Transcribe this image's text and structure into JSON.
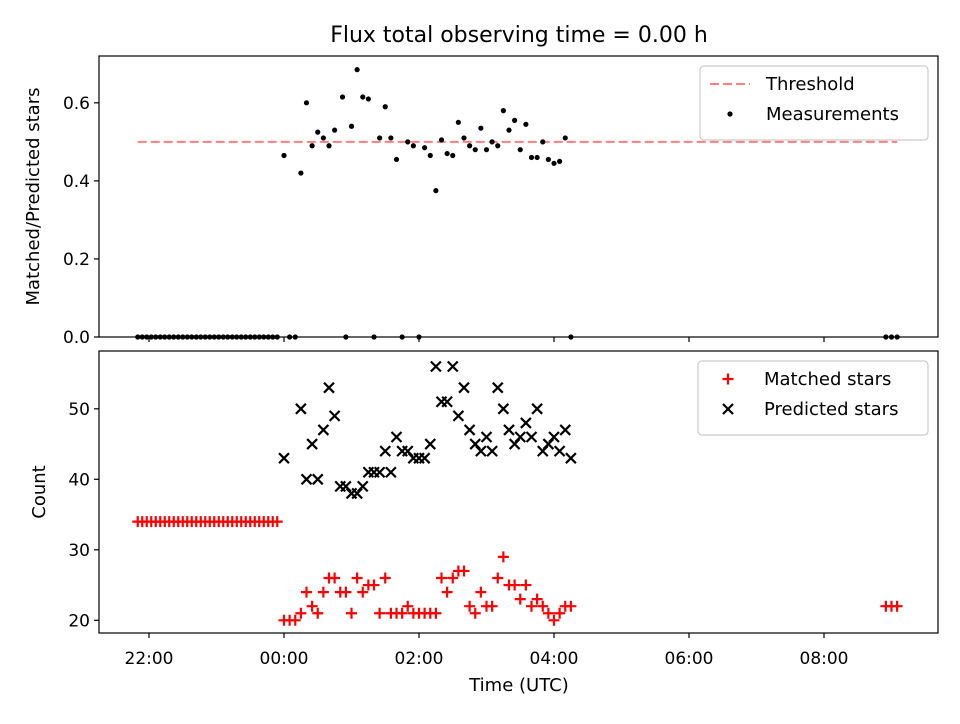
{
  "chart_data": {
    "type": "scatter",
    "title": "Flux total observing time = 0.00 h",
    "xlabel": "Time (UTC)",
    "x_ticks": [
      "22:00",
      "00:00",
      "02:00",
      "04:00",
      "06:00",
      "08:00"
    ],
    "panels": [
      {
        "id": "ratio",
        "ylabel": "Matched/Predicted stars",
        "ylim": [
          0,
          0.72
        ],
        "y_ticks": [
          "0.0",
          "0.2",
          "0.4",
          "0.6"
        ],
        "legend_position": "top-right",
        "threshold": {
          "name": "Threshold",
          "value": 0.5,
          "color": "#ff7f7f",
          "x_range": [
            "21:50",
            "09:05"
          ]
        },
        "series": [
          {
            "name": "Measurements",
            "color": "#000000",
            "marker": "dot",
            "points": [
              [
                "21:50",
                0
              ],
              [
                "21:54",
                0
              ],
              [
                "21:58",
                0
              ],
              [
                "22:02",
                0
              ],
              [
                "22:06",
                0
              ],
              [
                "22:10",
                0
              ],
              [
                "22:14",
                0
              ],
              [
                "22:18",
                0
              ],
              [
                "22:22",
                0
              ],
              [
                "22:26",
                0
              ],
              [
                "22:30",
                0
              ],
              [
                "22:34",
                0
              ],
              [
                "22:38",
                0
              ],
              [
                "22:42",
                0
              ],
              [
                "22:46",
                0
              ],
              [
                "22:50",
                0
              ],
              [
                "22:54",
                0
              ],
              [
                "22:58",
                0
              ],
              [
                "23:02",
                0
              ],
              [
                "23:06",
                0
              ],
              [
                "23:10",
                0
              ],
              [
                "23:14",
                0
              ],
              [
                "23:18",
                0
              ],
              [
                "23:22",
                0
              ],
              [
                "23:26",
                0
              ],
              [
                "23:30",
                0
              ],
              [
                "23:34",
                0
              ],
              [
                "23:38",
                0
              ],
              [
                "23:42",
                0
              ],
              [
                "23:46",
                0
              ],
              [
                "23:50",
                0
              ],
              [
                "23:54",
                0
              ],
              [
                "00:00",
                0.465
              ],
              [
                "00:05",
                0
              ],
              [
                "00:10",
                0
              ],
              [
                "00:15",
                0.42
              ],
              [
                "00:20",
                0.6
              ],
              [
                "00:25",
                0.49
              ],
              [
                "00:30",
                0.525
              ],
              [
                "00:35",
                0.51
              ],
              [
                "00:40",
                0.49
              ],
              [
                "00:45",
                0.53
              ],
              [
                "00:52",
                0.615
              ],
              [
                "00:55",
                0
              ],
              [
                "01:00",
                0.54
              ],
              [
                "01:05",
                0.685
              ],
              [
                "01:10",
                0.615
              ],
              [
                "01:15",
                0.61
              ],
              [
                "01:20",
                0
              ],
              [
                "01:25",
                0.51
              ],
              [
                "01:30",
                0.59
              ],
              [
                "01:35",
                0.51
              ],
              [
                "01:40",
                0.455
              ],
              [
                "01:45",
                0
              ],
              [
                "01:50",
                0.5
              ],
              [
                "01:55",
                0.49
              ],
              [
                "02:00",
                0
              ],
              [
                "02:05",
                0.485
              ],
              [
                "02:10",
                0.465
              ],
              [
                "02:15",
                0.375
              ],
              [
                "02:20",
                0.505
              ],
              [
                "02:25",
                0.47
              ],
              [
                "02:30",
                0.465
              ],
              [
                "02:35",
                0.55
              ],
              [
                "02:40",
                0.51
              ],
              [
                "02:45",
                0.49
              ],
              [
                "02:50",
                0.48
              ],
              [
                "02:55",
                0.535
              ],
              [
                "03:00",
                0.48
              ],
              [
                "03:05",
                0.5
              ],
              [
                "03:10",
                0.49
              ],
              [
                "03:15",
                0.58
              ],
              [
                "03:20",
                0.53
              ],
              [
                "03:25",
                0.555
              ],
              [
                "03:30",
                0.48
              ],
              [
                "03:35",
                0.545
              ],
              [
                "03:40",
                0.46
              ],
              [
                "03:45",
                0.46
              ],
              [
                "03:50",
                0.5
              ],
              [
                "03:55",
                0.455
              ],
              [
                "04:00",
                0.445
              ],
              [
                "04:05",
                0.45
              ],
              [
                "04:10",
                0.51
              ],
              [
                "04:15",
                0
              ],
              [
                "08:55",
                0
              ],
              [
                "09:00",
                0
              ],
              [
                "09:05",
                0
              ]
            ]
          }
        ]
      },
      {
        "id": "counts",
        "ylabel": "Count",
        "ylim": [
          18.2,
          58.2
        ],
        "y_ticks": [
          "20",
          "30",
          "40",
          "50"
        ],
        "legend_position": "top-right",
        "series": [
          {
            "name": "Matched stars",
            "color": "#ff0000",
            "marker": "plus",
            "points": [
              [
                "21:50",
                34
              ],
              [
                "21:54",
                34
              ],
              [
                "21:58",
                34
              ],
              [
                "22:02",
                34
              ],
              [
                "22:06",
                34
              ],
              [
                "22:10",
                34
              ],
              [
                "22:14",
                34
              ],
              [
                "22:18",
                34
              ],
              [
                "22:22",
                34
              ],
              [
                "22:26",
                34
              ],
              [
                "22:30",
                34
              ],
              [
                "22:34",
                34
              ],
              [
                "22:38",
                34
              ],
              [
                "22:42",
                34
              ],
              [
                "22:46",
                34
              ],
              [
                "22:50",
                34
              ],
              [
                "22:54",
                34
              ],
              [
                "22:58",
                34
              ],
              [
                "23:02",
                34
              ],
              [
                "23:06",
                34
              ],
              [
                "23:10",
                34
              ],
              [
                "23:14",
                34
              ],
              [
                "23:18",
                34
              ],
              [
                "23:22",
                34
              ],
              [
                "23:26",
                34
              ],
              [
                "23:30",
                34
              ],
              [
                "23:34",
                34
              ],
              [
                "23:38",
                34
              ],
              [
                "23:42",
                34
              ],
              [
                "23:46",
                34
              ],
              [
                "23:50",
                34
              ],
              [
                "23:54",
                34
              ],
              [
                "00:00",
                20
              ],
              [
                "00:05",
                20
              ],
              [
                "00:10",
                20
              ],
              [
                "00:15",
                21
              ],
              [
                "00:20",
                24
              ],
              [
                "00:25",
                22
              ],
              [
                "00:30",
                21
              ],
              [
                "00:35",
                24
              ],
              [
                "00:40",
                26
              ],
              [
                "00:45",
                26
              ],
              [
                "00:50",
                24
              ],
              [
                "00:55",
                24
              ],
              [
                "01:00",
                21
              ],
              [
                "01:05",
                26
              ],
              [
                "01:10",
                24
              ],
              [
                "01:15",
                25
              ],
              [
                "01:20",
                25
              ],
              [
                "01:25",
                21
              ],
              [
                "01:30",
                26
              ],
              [
                "01:35",
                21
              ],
              [
                "01:40",
                21
              ],
              [
                "01:45",
                21
              ],
              [
                "01:50",
                22
              ],
              [
                "01:55",
                21
              ],
              [
                "02:00",
                21
              ],
              [
                "02:05",
                21
              ],
              [
                "02:10",
                21
              ],
              [
                "02:15",
                21
              ],
              [
                "02:20",
                26
              ],
              [
                "02:25",
                24
              ],
              [
                "02:30",
                26
              ],
              [
                "02:35",
                27
              ],
              [
                "02:40",
                27
              ],
              [
                "02:45",
                22
              ],
              [
                "02:50",
                21
              ],
              [
                "02:55",
                24
              ],
              [
                "03:00",
                22
              ],
              [
                "03:05",
                22
              ],
              [
                "03:10",
                26
              ],
              [
                "03:15",
                29
              ],
              [
                "03:20",
                25
              ],
              [
                "03:25",
                25
              ],
              [
                "03:30",
                23
              ],
              [
                "03:35",
                25
              ],
              [
                "03:40",
                22
              ],
              [
                "03:45",
                23
              ],
              [
                "03:50",
                22
              ],
              [
                "03:55",
                21
              ],
              [
                "04:00",
                20
              ],
              [
                "04:05",
                21
              ],
              [
                "04:10",
                22
              ],
              [
                "04:15",
                22
              ],
              [
                "08:55",
                22
              ],
              [
                "09:00",
                22
              ],
              [
                "09:05",
                22
              ]
            ]
          },
          {
            "name": "Predicted stars",
            "color": "#000000",
            "marker": "x",
            "points": [
              [
                "00:00",
                43
              ],
              [
                "00:15",
                50
              ],
              [
                "00:20",
                40
              ],
              [
                "00:25",
                45
              ],
              [
                "00:30",
                40
              ],
              [
                "00:35",
                47
              ],
              [
                "00:40",
                53
              ],
              [
                "00:45",
                49
              ],
              [
                "00:50",
                39
              ],
              [
                "00:55",
                39
              ],
              [
                "01:00",
                38
              ],
              [
                "01:05",
                38
              ],
              [
                "01:10",
                39
              ],
              [
                "01:15",
                41
              ],
              [
                "01:20",
                41
              ],
              [
                "01:25",
                41
              ],
              [
                "01:30",
                44
              ],
              [
                "01:35",
                41
              ],
              [
                "01:40",
                46
              ],
              [
                "01:45",
                44
              ],
              [
                "01:50",
                44
              ],
              [
                "01:55",
                43
              ],
              [
                "02:00",
                43
              ],
              [
                "02:05",
                43
              ],
              [
                "02:10",
                45
              ],
              [
                "02:15",
                56
              ],
              [
                "02:20",
                51
              ],
              [
                "02:25",
                51
              ],
              [
                "02:30",
                56
              ],
              [
                "02:35",
                49
              ],
              [
                "02:40",
                53
              ],
              [
                "02:45",
                47
              ],
              [
                "02:50",
                45
              ],
              [
                "02:55",
                44
              ],
              [
                "03:00",
                46
              ],
              [
                "03:05",
                44
              ],
              [
                "03:10",
                53
              ],
              [
                "03:15",
                50
              ],
              [
                "03:20",
                47
              ],
              [
                "03:25",
                45
              ],
              [
                "03:30",
                46
              ],
              [
                "03:35",
                48
              ],
              [
                "03:40",
                46
              ],
              [
                "03:45",
                50
              ],
              [
                "03:50",
                44
              ],
              [
                "03:55",
                45
              ],
              [
                "04:00",
                46
              ],
              [
                "04:05",
                44
              ],
              [
                "04:10",
                47
              ],
              [
                "04:15",
                43
              ]
            ]
          }
        ]
      }
    ]
  }
}
